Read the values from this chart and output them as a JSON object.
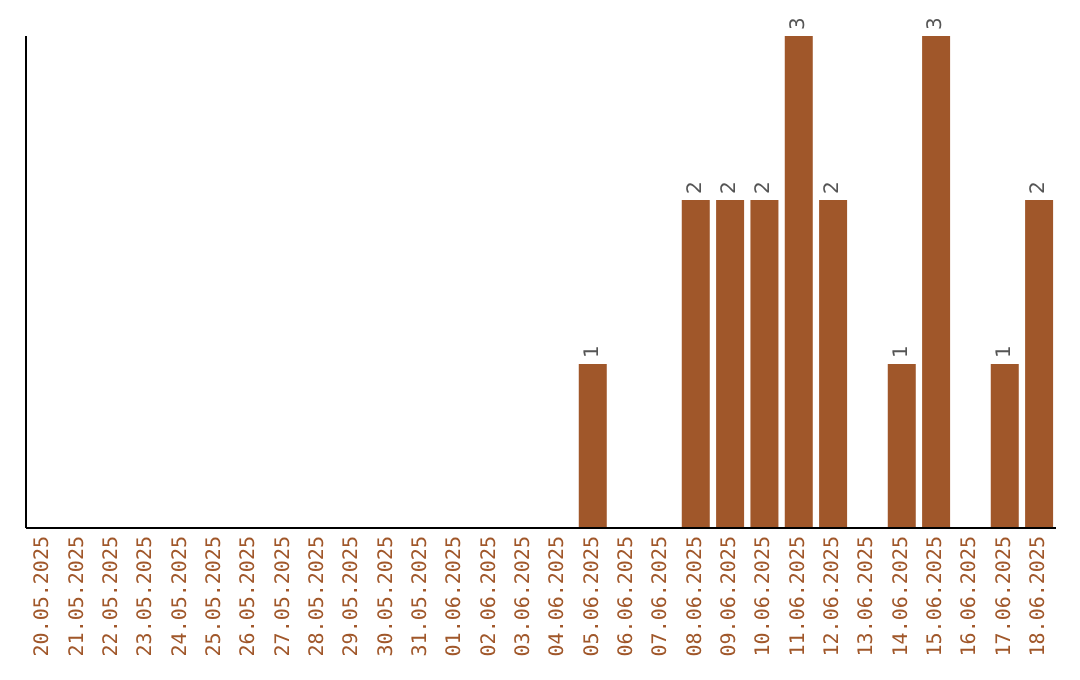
{
  "chart_data": {
    "type": "bar",
    "categories": [
      "20.05.2025",
      "21.05.2025",
      "22.05.2025",
      "23.05.2025",
      "24.05.2025",
      "25.05.2025",
      "26.05.2025",
      "27.05.2025",
      "28.05.2025",
      "29.05.2025",
      "30.05.2025",
      "31.05.2025",
      "01.06.2025",
      "02.06.2025",
      "03.06.2025",
      "04.06.2025",
      "05.06.2025",
      "06.06.2025",
      "07.06.2025",
      "08.06.2025",
      "09.06.2025",
      "10.06.2025",
      "11.06.2025",
      "12.06.2025",
      "13.06.2025",
      "14.06.2025",
      "15.06.2025",
      "16.06.2025",
      "17.06.2025",
      "18.06.2025"
    ],
    "values": [
      null,
      null,
      null,
      null,
      null,
      null,
      null,
      null,
      null,
      null,
      null,
      null,
      null,
      null,
      null,
      null,
      1,
      null,
      null,
      2,
      2,
      2,
      3,
      2,
      null,
      1,
      3,
      null,
      1,
      2
    ],
    "value_labels": [
      null,
      null,
      null,
      null,
      null,
      null,
      null,
      null,
      null,
      null,
      null,
      null,
      null,
      null,
      null,
      null,
      "1",
      null,
      null,
      "2",
      "2",
      "2",
      "3",
      "2",
      null,
      "1",
      "3",
      null,
      "1",
      "2"
    ],
    "color": "#a0572a",
    "tick_labels": "x",
    "grid": false,
    "legend": false
  }
}
